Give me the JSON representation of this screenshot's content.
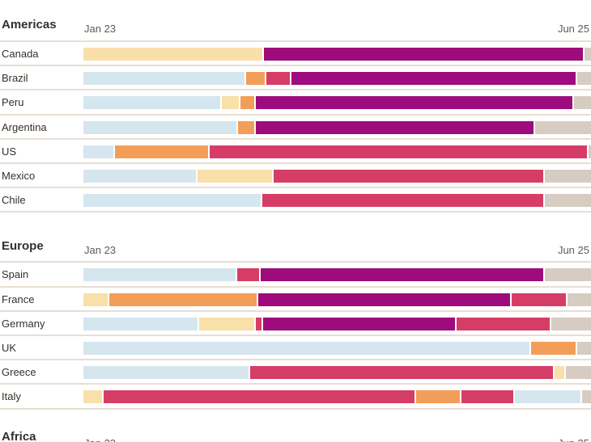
{
  "chart_data": {
    "type": "bar",
    "subtype": "timeline-stacked-horizontal",
    "axis": {
      "start_label": "Jan 23",
      "end_label": "Jun 25",
      "range_note": "x axis spans Jan 2023 to Jun 2025, segment positions as percent of span"
    },
    "palette": {
      "blue": "#d5e6ef",
      "cream": "#f8e0a8",
      "orange": "#f29e58",
      "pink": "#d63d66",
      "magenta": "#9e0b7d",
      "beige": "#d7ccc1"
    },
    "grid": "row separator lines only",
    "legend": "none visible",
    "sections": [
      {
        "title": "Americas",
        "rows": [
          {
            "label": "Canada",
            "segments": [
              {
                "color": "cream",
                "end_pct": 35.6
              },
              {
                "color": "magenta",
                "end_pct": 98.7
              },
              {
                "color": "beige",
                "end_pct": 100
              }
            ]
          },
          {
            "label": "Brazil",
            "segments": [
              {
                "color": "blue",
                "end_pct": 32.1
              },
              {
                "color": "orange",
                "end_pct": 36.0
              },
              {
                "color": "pink",
                "end_pct": 41.0
              },
              {
                "color": "magenta",
                "end_pct": 97.3
              },
              {
                "color": "beige",
                "end_pct": 100
              }
            ]
          },
          {
            "label": "Peru",
            "segments": [
              {
                "color": "blue",
                "end_pct": 27.3
              },
              {
                "color": "cream",
                "end_pct": 30.9
              },
              {
                "color": "orange",
                "end_pct": 34.0
              },
              {
                "color": "magenta",
                "end_pct": 96.7
              },
              {
                "color": "beige",
                "end_pct": 100
              }
            ]
          },
          {
            "label": "Argentina",
            "segments": [
              {
                "color": "blue",
                "end_pct": 30.5
              },
              {
                "color": "orange",
                "end_pct": 34.0
              },
              {
                "color": "magenta",
                "end_pct": 89.0
              },
              {
                "color": "beige",
                "end_pct": 100
              }
            ]
          },
          {
            "label": "US",
            "segments": [
              {
                "color": "blue",
                "end_pct": 6.2
              },
              {
                "color": "orange",
                "end_pct": 24.9
              },
              {
                "color": "pink",
                "end_pct": 99.5
              },
              {
                "color": "beige",
                "end_pct": 100
              }
            ]
          },
          {
            "label": "Mexico",
            "segments": [
              {
                "color": "blue",
                "end_pct": 22.5
              },
              {
                "color": "cream",
                "end_pct": 37.5
              },
              {
                "color": "pink",
                "end_pct": 90.9
              },
              {
                "color": "beige",
                "end_pct": 100
              }
            ]
          },
          {
            "label": "Chile",
            "segments": [
              {
                "color": "blue",
                "end_pct": 35.2
              },
              {
                "color": "pink",
                "end_pct": 90.9
              },
              {
                "color": "beige",
                "end_pct": 100
              }
            ]
          }
        ]
      },
      {
        "title": "Europe",
        "rows": [
          {
            "label": "Spain",
            "segments": [
              {
                "color": "blue",
                "end_pct": 30.3
              },
              {
                "color": "pink",
                "end_pct": 34.9
              },
              {
                "color": "magenta",
                "end_pct": 90.9
              },
              {
                "color": "beige",
                "end_pct": 100
              }
            ]
          },
          {
            "label": "France",
            "segments": [
              {
                "color": "cream",
                "end_pct": 5.1
              },
              {
                "color": "orange",
                "end_pct": 34.4
              },
              {
                "color": "magenta",
                "end_pct": 84.4
              },
              {
                "color": "pink",
                "end_pct": 95.4
              },
              {
                "color": "beige",
                "end_pct": 100
              }
            ]
          },
          {
            "label": "Germany",
            "segments": [
              {
                "color": "blue",
                "end_pct": 22.8
              },
              {
                "color": "cream",
                "end_pct": 34.0
              },
              {
                "color": "pink",
                "end_pct": 35.4
              },
              {
                "color": "magenta",
                "end_pct": 73.5
              },
              {
                "color": "pink",
                "end_pct": 92.2
              },
              {
                "color": "beige",
                "end_pct": 100
              }
            ]
          },
          {
            "label": "UK",
            "segments": [
              {
                "color": "blue",
                "end_pct": 88.2
              },
              {
                "color": "orange",
                "end_pct": 97.3
              },
              {
                "color": "beige",
                "end_pct": 100
              }
            ]
          },
          {
            "label": "Greece",
            "segments": [
              {
                "color": "blue",
                "end_pct": 32.9
              },
              {
                "color": "pink",
                "end_pct": 92.8
              },
              {
                "color": "cream",
                "end_pct": 95.1
              },
              {
                "color": "beige",
                "end_pct": 100
              }
            ]
          },
          {
            "label": "Italy",
            "segments": [
              {
                "color": "cream",
                "end_pct": 4.0
              },
              {
                "color": "pink",
                "end_pct": 65.6
              },
              {
                "color": "orange",
                "end_pct": 74.5
              },
              {
                "color": "pink",
                "end_pct": 85.0
              },
              {
                "color": "blue",
                "end_pct": 98.2
              },
              {
                "color": "beige",
                "end_pct": 100
              }
            ]
          }
        ]
      },
      {
        "title": "Africa",
        "rows": []
      }
    ]
  }
}
